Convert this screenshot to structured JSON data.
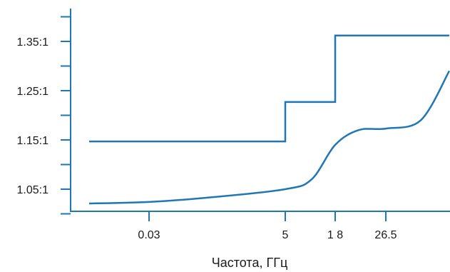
{
  "chart_data": {
    "type": "line",
    "title": "",
    "xlabel": "Частота, ГГц",
    "ylabel": "",
    "x_tick_labels": [
      "0.03",
      "5",
      "1 8",
      "26.5"
    ],
    "y_tick_labels": [
      "1.05:1",
      "1.15:1",
      "1.25:1",
      "1.35:1"
    ],
    "y_ticks": [
      1.05,
      1.15,
      1.25,
      1.35
    ],
    "ylim": [
      1.0,
      1.4
    ],
    "grid": false,
    "colors": {
      "line": "#1f77b4",
      "axis": "#1f77b4",
      "text": "#1a1a1a"
    },
    "series": [
      {
        "step": true,
        "x": [
          "0.01",
          "5",
          "5",
          "18",
          "18",
          "40"
        ],
        "y": [
          1.147,
          1.147,
          1.227,
          1.227,
          1.362,
          1.362
        ]
      },
      {
        "x": [
          "0.01",
          "0.03",
          "1",
          "5",
          "10",
          "18",
          "22",
          "26.5",
          "30",
          "40"
        ],
        "y": [
          1.021,
          1.024,
          1.034,
          1.05,
          1.07,
          1.14,
          1.17,
          1.173,
          1.19,
          1.29
        ]
      }
    ]
  }
}
